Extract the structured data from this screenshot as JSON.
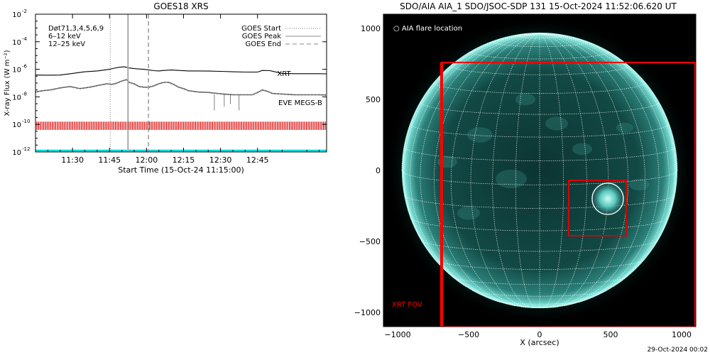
{
  "chart_data": [
    {
      "type": "line",
      "title": "GOES18 XRS",
      "xlabel": "Start Time (15-Oct-24 11:15:00)",
      "ylabel": "X-ray Flux (W m⁻²)",
      "x_unit": "minutes after 11:15",
      "xlim": [
        0,
        118
      ],
      "ylim_log10": [
        -12,
        -2
      ],
      "xticks": [
        {
          "value": 15,
          "label": "11:30"
        },
        {
          "value": 30,
          "label": "11:45"
        },
        {
          "value": 45,
          "label": "12:00"
        },
        {
          "value": 60,
          "label": "12:15"
        },
        {
          "value": 75,
          "label": "12:30"
        },
        {
          "value": 90,
          "label": "12:45"
        }
      ],
      "yticks": [
        {
          "exp": -12,
          "label": "10",
          "sup": "-12"
        },
        {
          "exp": -10,
          "label": "10",
          "sup": "-10"
        },
        {
          "exp": -8,
          "label": "10",
          "sup": "-8"
        },
        {
          "exp": -6,
          "label": "10",
          "sup": "-6"
        },
        {
          "exp": -4,
          "label": "10",
          "sup": "-4"
        },
        {
          "exp": -2,
          "label": "10",
          "sup": "-2"
        }
      ],
      "legend_left": {
        "line1": "Døt71,3,4,5,6,9",
        "line2": "6–12 keV",
        "line3": "12–25 keV",
        "color2": "#cc00cc",
        "color3": "#00cc00"
      },
      "legend_right": {
        "start": "GOES Start",
        "peak": "GOES Peak",
        "end": "GOES End"
      },
      "markers": {
        "start": 30.3,
        "peak": 37.5,
        "end": 45.8
      },
      "series": [
        {
          "name": "",
          "style": "solid",
          "x": [
            0,
            5,
            10,
            15,
            20,
            25,
            28,
            30,
            32,
            34,
            36,
            38,
            40,
            42,
            44,
            46,
            48,
            50,
            52,
            55,
            58,
            62,
            66,
            70,
            75,
            80,
            85,
            90,
            92,
            95,
            100,
            105,
            110,
            115,
            118
          ],
          "log_values": [
            -6.42,
            -6.43,
            -6.42,
            -6.3,
            -6.18,
            -6.12,
            -6.05,
            -6.0,
            -5.92,
            -5.85,
            -5.82,
            -5.9,
            -5.95,
            -5.98,
            -6.0,
            -6.05,
            -6.1,
            -6.12,
            -6.08,
            -6.05,
            -6.08,
            -6.12,
            -6.12,
            -6.13,
            -6.15,
            -6.18,
            -6.2,
            -6.2,
            -6.08,
            -6.1,
            -6.3,
            -6.32,
            -6.32,
            -6.32,
            -6.33
          ]
        },
        {
          "name": "",
          "style": "dotted",
          "x": [
            0,
            3,
            6,
            10,
            14,
            18,
            22,
            26,
            29,
            31,
            33,
            35,
            37,
            38,
            40,
            42,
            44,
            46,
            48,
            50,
            52,
            54,
            56,
            58,
            60,
            62,
            64,
            66,
            70,
            75,
            80,
            85,
            88,
            90,
            92,
            94,
            96,
            100,
            105,
            110,
            115,
            118
          ],
          "log_values": [
            -7.65,
            -7.55,
            -7.5,
            -7.35,
            -7.25,
            -7.4,
            -7.3,
            -7.15,
            -7.05,
            -7.1,
            -7.0,
            -6.85,
            -6.75,
            -6.95,
            -7.05,
            -7.25,
            -7.3,
            -7.3,
            -7.2,
            -7.05,
            -6.95,
            -6.95,
            -7.1,
            -7.3,
            -7.4,
            -7.55,
            -7.6,
            -7.65,
            -7.68,
            -7.78,
            -7.85,
            -7.85,
            -7.85,
            -7.68,
            -7.5,
            -7.6,
            -7.75,
            -7.8,
            -7.85,
            -7.85,
            -7.85,
            -7.87
          ]
        }
      ],
      "dips": [
        {
          "x": 72.5,
          "log_bottom": -9.0
        },
        {
          "x": 76.5,
          "log_bottom": -8.7
        },
        {
          "x": 79.0,
          "log_bottom": -8.5
        },
        {
          "x": 82.5,
          "log_bottom": -9.0
        }
      ],
      "xrt": {
        "label": "XRT",
        "color": "#dd0000",
        "log_low": -10.4,
        "log_high": -9.8,
        "tick_count": 170
      },
      "eve": {
        "label": "EVE MEGS-B",
        "color": "#00dddd",
        "log": -11.9
      }
    },
    {
      "type": "heatmap",
      "title": "SDO/AIA AIA_1 SDO/JSOC-SDP 131 15-Oct-2024 11:52:06.620 UT",
      "xlabel": "X (arcsec)",
      "ylabel": "",
      "xlim": [
        -1100,
        1100
      ],
      "ylim": [
        -1100,
        1100
      ],
      "xticks": [
        {
          "value": -1000,
          "label": "−1000"
        },
        {
          "value": -500,
          "label": "−500"
        },
        {
          "value": 0,
          "label": "0"
        },
        {
          "value": 500,
          "label": "500"
        },
        {
          "value": 1000,
          "label": "1000"
        }
      ],
      "yticks": [
        {
          "value": 1000,
          "label": "1000"
        },
        {
          "value": 500,
          "label": "500"
        },
        {
          "value": 0,
          "label": "0"
        },
        {
          "value": -500,
          "label": "−500"
        },
        {
          "value": -1000,
          "label": "−1000"
        }
      ],
      "legend": "○ AIA flare location",
      "solar_radius_arcsec": 970,
      "grid_step_deg": 10,
      "b0_deg": 6,
      "xrt_fov": {
        "label": "XRT FOV",
        "x": [
          -690,
          1100
        ],
        "y": [
          -1100,
          760
        ],
        "color": "#ff0000"
      },
      "zoom_box": {
        "x": [
          205,
          610
        ],
        "y": [
          -460,
          -70
        ],
        "color": "#dd0000"
      },
      "flare": {
        "x": 480,
        "y": -200,
        "r": 110,
        "color": "#ffffff"
      }
    }
  ],
  "footer": {
    "date": "29-Oct-2024 00:02"
  }
}
